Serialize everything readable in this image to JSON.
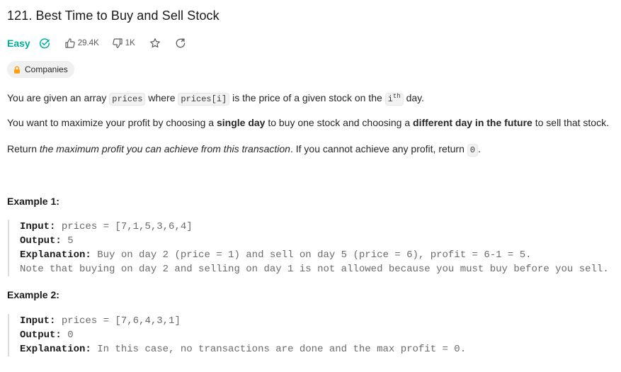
{
  "problem": {
    "title": "121. Best Time to Buy and Sell Stock",
    "difficulty": "Easy",
    "likes": "29.4K",
    "dislikes": "1K",
    "companies_label": "Companies"
  },
  "description": {
    "p1": {
      "t1": "You are given an array ",
      "c1": "prices",
      "t2": " where ",
      "c2": "prices[i]",
      "t3": " is the price of a given stock on the ",
      "c3_base": "i",
      "c3_sup": "th",
      "t4": " day."
    },
    "p2": {
      "t1": "You want to maximize your profit by choosing a ",
      "b1": "single day",
      "t2": " to buy one stock and choosing a ",
      "b2": "different day in the future",
      "t3": " to sell that stock."
    },
    "p3": {
      "t1": "Return ",
      "i1": "the maximum profit you can achieve from this transaction",
      "t2": ". If you cannot achieve any profit, return ",
      "c1": "0",
      "t3": "."
    }
  },
  "examples": [
    {
      "title": "Example 1:",
      "input_label": "Input:",
      "input_value": " prices = [7,1,5,3,6,4]",
      "output_label": "Output:",
      "output_value": " 5",
      "explanation_label": "Explanation:",
      "explanation_value": " Buy on day 2 (price = 1) and sell on day 5 (price = 6), profit = 6-1 = 5.",
      "explanation_line2": "Note that buying on day 2 and selling on day 1 is not allowed because you must buy before you sell."
    },
    {
      "title": "Example 2:",
      "input_label": "Input:",
      "input_value": " prices = [7,6,4,3,1]",
      "output_label": "Output:",
      "output_value": " 0",
      "explanation_label": "Explanation:",
      "explanation_value": " In this case, no transactions are done and the max profit = 0."
    }
  ],
  "colors": {
    "easy": "#00af9b",
    "lock": "#ffa116",
    "text": "#262626"
  },
  "icons": [
    "check-circle-icon",
    "thumbs-up-icon",
    "thumbs-down-icon",
    "star-icon",
    "share-icon",
    "lock-icon"
  ]
}
